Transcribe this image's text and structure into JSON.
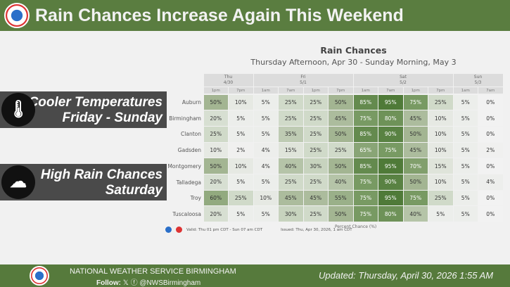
{
  "header": {
    "title": "Rain Chances Increase Again This Weekend"
  },
  "chart": {
    "title": "Rain Chances",
    "subtitle": "Thursday Afternoon, Apr 30 - Sunday Morning, May 3",
    "legend": "Percent Chance (%)",
    "valid": "Valid: Thu 01 pm CDT - Sun 07 am CDT",
    "issued": "Issued: Thu, Apr 30, 2026, 1 am CDT"
  },
  "panels": [
    {
      "line1": "Cooler Temperatures",
      "line2": "Friday - Sunday",
      "icon": "thermometer-icon"
    },
    {
      "line1": "High Rain Chances",
      "line2": "Saturday",
      "icon": "rain-cloud-icon"
    }
  ],
  "chart_data": {
    "type": "table",
    "days": [
      {
        "day": "Thu",
        "date": "4/30",
        "span": 2
      },
      {
        "day": "Fri",
        "date": "5/1",
        "span": 4
      },
      {
        "day": "Sat",
        "date": "5/2",
        "span": 4
      },
      {
        "day": "Sun",
        "date": "5/3",
        "span": 2
      }
    ],
    "times": [
      "1pm",
      "7pm",
      "1am",
      "7am",
      "1pm",
      "7pm",
      "1am",
      "7am",
      "1pm",
      "7pm",
      "1am",
      "7am"
    ],
    "rows": [
      {
        "city": "Auburn",
        "values": [
          50,
          10,
          5,
          25,
          25,
          50,
          85,
          95,
          75,
          25,
          5,
          0
        ]
      },
      {
        "city": "Birmingham",
        "values": [
          20,
          5,
          5,
          25,
          25,
          45,
          75,
          80,
          45,
          10,
          5,
          0
        ]
      },
      {
        "city": "Clanton",
        "values": [
          25,
          5,
          5,
          35,
          25,
          50,
          85,
          90,
          50,
          10,
          5,
          0
        ]
      },
      {
        "city": "Gadsden",
        "values": [
          10,
          2,
          4,
          15,
          25,
          25,
          65,
          75,
          45,
          10,
          5,
          2
        ]
      },
      {
        "city": "Montgomery",
        "values": [
          50,
          10,
          4,
          40,
          30,
          50,
          85,
          95,
          70,
          15,
          5,
          0
        ]
      },
      {
        "city": "Talladega",
        "values": [
          20,
          5,
          5,
          25,
          25,
          40,
          75,
          90,
          50,
          10,
          5,
          4
        ]
      },
      {
        "city": "Troy",
        "values": [
          60,
          25,
          10,
          45,
          45,
          55,
          75,
          95,
          75,
          25,
          5,
          0
        ]
      },
      {
        "city": "Tuscaloosa",
        "values": [
          20,
          5,
          5,
          30,
          25,
          50,
          75,
          80,
          40,
          5,
          5,
          0
        ]
      }
    ]
  },
  "footer": {
    "org": "NATIONAL WEATHER SERVICE BIRMINGHAM",
    "follow_label": "Follow:",
    "handle": "@NWSBirmingham",
    "updated": "Updated:   Thursday, April 30, 2026 1:55 AM"
  }
}
